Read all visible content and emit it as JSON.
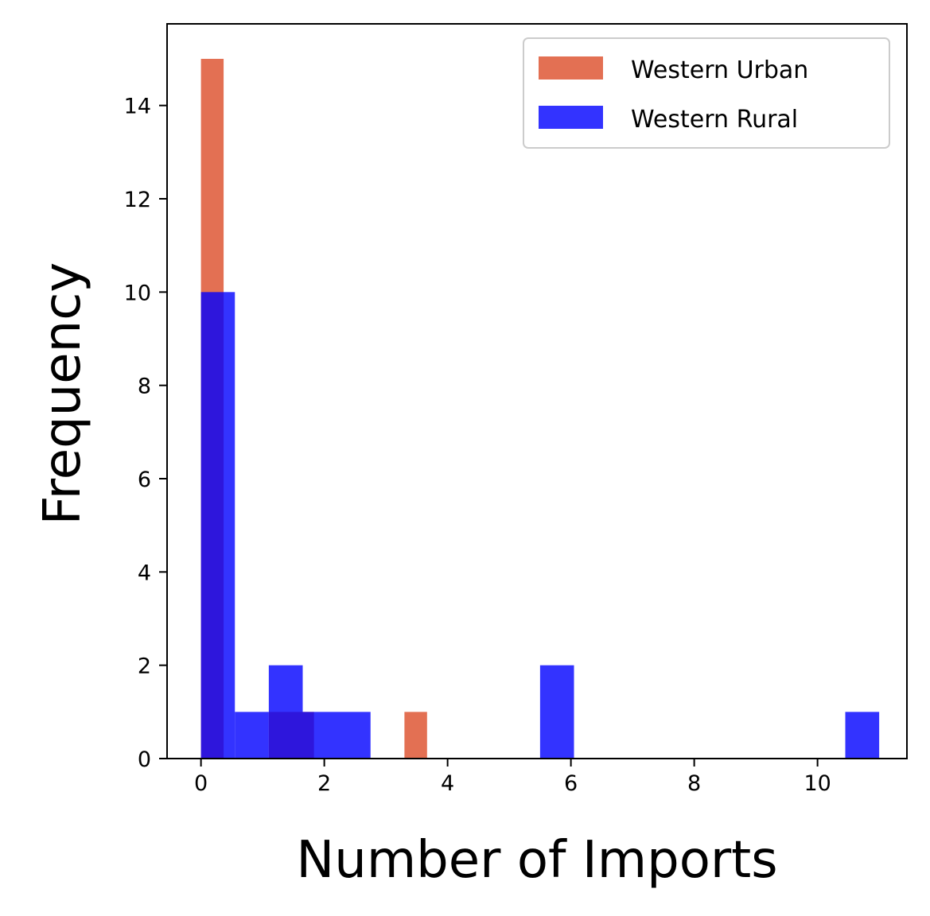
{
  "chart_data": {
    "type": "bar",
    "subtype": "overlapping-histogram",
    "title": "",
    "xlabel": "Number of Imports",
    "ylabel": "Frequency",
    "xlim": [
      -0.55,
      11.45
    ],
    "ylim": [
      0,
      15.75
    ],
    "xticks": [
      0,
      2,
      4,
      6,
      8,
      10
    ],
    "yticks": [
      0,
      2,
      4,
      6,
      8,
      10,
      12,
      14
    ],
    "grid": false,
    "legend_position": "top-right",
    "series": [
      {
        "name": "Western Urban",
        "color": "#e06040",
        "opacity": 0.9,
        "bins": [
          {
            "x0": 0.0,
            "x1": 0.367,
            "value": 15
          },
          {
            "x0": 1.1,
            "x1": 1.833,
            "value": 1
          },
          {
            "x0": 3.3,
            "x1": 3.667,
            "value": 1
          }
        ]
      },
      {
        "name": "Western Rural",
        "color": "#0000ff",
        "opacity": 0.8,
        "bins": [
          {
            "x0": 0.0,
            "x1": 0.55,
            "value": 10
          },
          {
            "x0": 0.55,
            "x1": 1.1,
            "value": 1
          },
          {
            "x0": 1.1,
            "x1": 1.65,
            "value": 2
          },
          {
            "x0": 1.65,
            "x1": 2.75,
            "value": 1
          },
          {
            "x0": 5.5,
            "x1": 6.05,
            "value": 2
          },
          {
            "x0": 10.45,
            "x1": 11.0,
            "value": 1
          }
        ]
      }
    ]
  }
}
